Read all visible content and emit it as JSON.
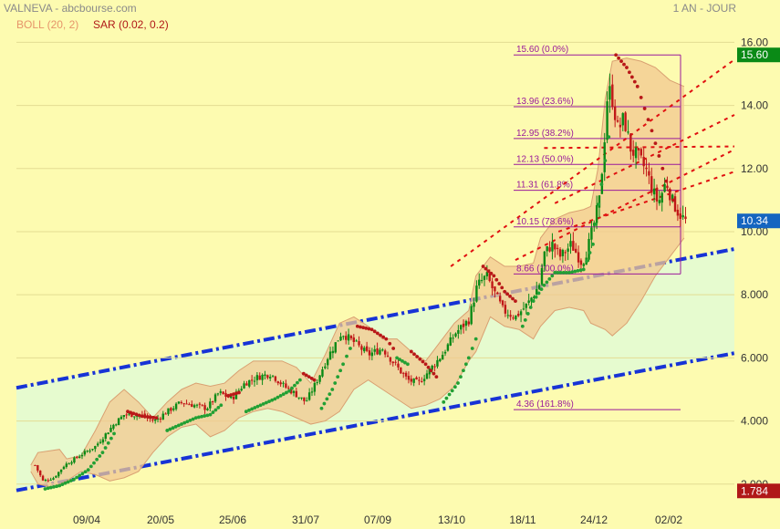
{
  "header": {
    "title": "VALNEVA - abcbourse.com",
    "period": "1 AN - JOUR",
    "boll_label": "BOLL (20, 2)",
    "sar_label": "SAR (0.02, 0.2)"
  },
  "colors": {
    "background": "#fdfbb0",
    "channel_fill": "#e6fbcf",
    "channel_line": "#1733d6",
    "bollinger_fill": "#f2c890",
    "bollinger_edge": "#d9a072",
    "candle_up": "#0a8a16",
    "candle_down": "#c01818",
    "sar_up": "#22a034",
    "sar_down": "#b81818",
    "fibonacci": "#9a1a9a",
    "last_price_badge": "#1565c0",
    "max_badge": "#0a8a16",
    "min_badge": "#b01818"
  },
  "chart_data": {
    "type": "candlestick",
    "ylim": [
      1.3,
      16.3
    ],
    "yticks": [
      "16.00",
      "14.00",
      "12.00",
      "10.00",
      "8.000",
      "6.000",
      "4.000",
      "2.000"
    ],
    "yticks_values": [
      16,
      14,
      12,
      10,
      8,
      6,
      4,
      2
    ],
    "xticks": [
      "09/04",
      "20/05",
      "25/06",
      "31/07",
      "07/09",
      "13/10",
      "18/11",
      "24/12",
      "02/02"
    ],
    "last_price": "10.34",
    "period_high": "15.60",
    "period_low": "1.784",
    "close_path": [
      [
        2.6,
        2.6
      ],
      [
        3.7,
        2.1
      ],
      [
        5.2,
        2.2
      ],
      [
        6.7,
        2.6
      ],
      [
        8.8,
        2.9
      ],
      [
        11.0,
        3.2
      ],
      [
        13.6,
        3.9
      ],
      [
        15.0,
        4.2
      ],
      [
        17.3,
        4.2
      ],
      [
        19.2,
        4.0
      ],
      [
        21.0,
        4.3
      ],
      [
        23.0,
        4.6
      ],
      [
        24.7,
        4.5
      ],
      [
        26.5,
        4.4
      ],
      [
        28.2,
        4.9
      ],
      [
        30.0,
        4.7
      ],
      [
        31.8,
        5.2
      ],
      [
        33.7,
        5.4
      ],
      [
        35.4,
        5.5
      ],
      [
        37.3,
        5.1
      ],
      [
        38.6,
        4.9
      ],
      [
        40.3,
        4.6
      ],
      [
        41.7,
        5.2
      ],
      [
        43.3,
        6.0
      ],
      [
        45.3,
        6.8
      ],
      [
        47.0,
        6.5
      ],
      [
        49.0,
        6.1
      ],
      [
        51.0,
        6.3
      ],
      [
        52.7,
        5.8
      ],
      [
        54.5,
        5.3
      ],
      [
        56.0,
        5.2
      ],
      [
        57.5,
        5.6
      ],
      [
        59.3,
        6.1
      ],
      [
        61.2,
        6.8
      ],
      [
        63.0,
        7.2
      ],
      [
        64.2,
        8.3
      ],
      [
        65.5,
        8.6
      ],
      [
        66.5,
        8.1
      ],
      [
        67.8,
        7.5
      ],
      [
        69.5,
        7.3
      ],
      [
        71.2,
        7.7
      ],
      [
        72.8,
        8.3
      ],
      [
        73.5,
        9.3
      ],
      [
        74.6,
        9.6
      ],
      [
        75.8,
        9.2
      ],
      [
        77.3,
        9.6
      ],
      [
        78.8,
        9.0
      ],
      [
        79.6,
        9.5
      ],
      [
        80.4,
        10.2
      ],
      [
        81.2,
        11.0
      ],
      [
        81.8,
        12.6
      ],
      [
        82.4,
        14.6
      ],
      [
        83.0,
        14.2
      ],
      [
        83.8,
        13.2
      ],
      [
        84.6,
        13.6
      ],
      [
        85.6,
        12.6
      ],
      [
        86.8,
        12.3
      ],
      [
        87.8,
        11.9
      ],
      [
        88.6,
        11.3
      ],
      [
        89.4,
        10.9
      ],
      [
        90.5,
        11.6
      ],
      [
        91.3,
        11.0
      ],
      [
        92.2,
        10.6
      ],
      [
        93.2,
        10.34
      ]
    ],
    "bollinger_upper_path": [
      [
        2,
        2.6
      ],
      [
        3,
        3.0
      ],
      [
        6,
        3.1
      ],
      [
        7,
        2.8
      ],
      [
        9,
        2.9
      ],
      [
        11,
        3.7
      ],
      [
        13,
        4.6
      ],
      [
        15,
        5.0
      ],
      [
        17,
        4.6
      ],
      [
        19,
        4.1
      ],
      [
        21,
        4.6
      ],
      [
        23,
        5.0
      ],
      [
        25,
        5.2
      ],
      [
        27,
        5.1
      ],
      [
        29,
        5.2
      ],
      [
        31,
        5.6
      ],
      [
        33,
        5.9
      ],
      [
        35,
        5.9
      ],
      [
        37,
        5.9
      ],
      [
        39,
        5.7
      ],
      [
        41,
        5.2
      ],
      [
        43,
        6.1
      ],
      [
        45,
        7.1
      ],
      [
        47,
        7.3
      ],
      [
        49,
        7.0
      ],
      [
        51,
        6.6
      ],
      [
        53,
        6.6
      ],
      [
        55,
        6.2
      ],
      [
        57,
        5.9
      ],
      [
        59,
        6.5
      ],
      [
        61,
        7.1
      ],
      [
        63,
        7.5
      ],
      [
        64,
        8.6
      ],
      [
        66,
        9.2
      ],
      [
        68,
        8.9
      ],
      [
        70,
        8.9
      ],
      [
        72,
        9.0
      ],
      [
        73,
        9.8
      ],
      [
        75,
        10.4
      ],
      [
        77,
        10.6
      ],
      [
        79,
        10.7
      ],
      [
        80,
        10.8
      ],
      [
        81,
        12.0
      ],
      [
        82,
        14.2
      ],
      [
        83,
        15.4
      ],
      [
        85,
        15.5
      ],
      [
        87,
        15.4
      ],
      [
        89,
        15.2
      ],
      [
        91,
        14.8
      ],
      [
        93,
        14.6
      ]
    ],
    "bollinger_lower_path": [
      [
        2,
        2.4
      ],
      [
        3,
        2.0
      ],
      [
        5,
        1.9
      ],
      [
        7,
        2.1
      ],
      [
        9,
        2.4
      ],
      [
        11,
        2.3
      ],
      [
        13,
        2.1
      ],
      [
        15,
        2.2
      ],
      [
        17,
        2.4
      ],
      [
        19,
        3.0
      ],
      [
        21,
        3.5
      ],
      [
        23,
        3.8
      ],
      [
        25,
        3.9
      ],
      [
        27,
        3.5
      ],
      [
        29,
        3.7
      ],
      [
        31,
        4.1
      ],
      [
        33,
        4.3
      ],
      [
        35,
        4.4
      ],
      [
        37,
        4.3
      ],
      [
        39,
        4.1
      ],
      [
        41,
        3.9
      ],
      [
        43,
        4.0
      ],
      [
        45,
        4.3
      ],
      [
        47,
        5.0
      ],
      [
        49,
        5.3
      ],
      [
        51,
        5.0
      ],
      [
        53,
        4.7
      ],
      [
        55,
        4.4
      ],
      [
        57,
        4.5
      ],
      [
        59,
        4.7
      ],
      [
        61,
        5.1
      ],
      [
        63,
        5.9
      ],
      [
        64,
        6.2
      ],
      [
        66,
        7.3
      ],
      [
        68,
        7.0
      ],
      [
        70,
        6.9
      ],
      [
        72,
        6.6
      ],
      [
        73,
        7.0
      ],
      [
        75,
        7.5
      ],
      [
        77,
        7.6
      ],
      [
        79,
        7.5
      ],
      [
        80,
        7.1
      ],
      [
        82,
        6.9
      ],
      [
        83,
        6.7
      ],
      [
        85,
        7.1
      ],
      [
        87,
        7.8
      ],
      [
        89,
        8.6
      ],
      [
        91,
        9.2
      ],
      [
        93,
        9.8
      ]
    ],
    "sar_segments": [
      {
        "trend": "up",
        "points": [
          [
            4.0,
            1.85
          ],
          [
            6.0,
            1.95
          ],
          [
            8.0,
            2.15
          ],
          [
            10.0,
            2.45
          ],
          [
            12.0,
            3.0
          ],
          [
            13.6,
            3.6
          ]
        ]
      },
      {
        "trend": "down",
        "points": [
          [
            15.5,
            4.3
          ],
          [
            17.5,
            4.15
          ],
          [
            19.5,
            4.1
          ]
        ]
      },
      {
        "trend": "up",
        "points": [
          [
            21.0,
            3.7
          ],
          [
            23.0,
            3.9
          ],
          [
            25.0,
            4.1
          ],
          [
            27.0,
            4.2
          ],
          [
            28.5,
            4.5
          ]
        ]
      },
      {
        "trend": "down",
        "points": [
          [
            29.5,
            4.8
          ],
          [
            31.0,
            4.9
          ]
        ]
      },
      {
        "trend": "up",
        "points": [
          [
            32.0,
            4.3
          ],
          [
            34.0,
            4.5
          ],
          [
            36.0,
            4.7
          ],
          [
            38.0,
            4.95
          ],
          [
            39.5,
            5.3
          ]
        ]
      },
      {
        "trend": "down",
        "points": [
          [
            40.0,
            5.5
          ],
          [
            41.5,
            5.3
          ]
        ]
      },
      {
        "trend": "up",
        "points": [
          [
            42.5,
            4.4
          ],
          [
            44.0,
            5.0
          ],
          [
            45.5,
            5.8
          ],
          [
            46.5,
            6.3
          ]
        ]
      },
      {
        "trend": "down",
        "points": [
          [
            47.5,
            7.0
          ],
          [
            49.5,
            6.9
          ],
          [
            51.5,
            6.6
          ],
          [
            52.5,
            6.3
          ]
        ]
      },
      {
        "trend": "up",
        "points": [
          [
            53.0,
            6.0
          ],
          [
            54.5,
            5.8
          ]
        ]
      },
      {
        "trend": "down",
        "points": [
          [
            55.0,
            6.2
          ],
          [
            57.0,
            5.8
          ],
          [
            58.5,
            5.4
          ]
        ]
      },
      {
        "trend": "up",
        "points": [
          [
            59.5,
            4.6
          ],
          [
            61.5,
            5.2
          ],
          [
            63.0,
            6.0
          ],
          [
            64.0,
            6.6
          ]
        ]
      },
      {
        "trend": "down",
        "points": [
          [
            65.0,
            8.9
          ],
          [
            66.5,
            8.6
          ],
          [
            68.0,
            8.1
          ],
          [
            69.5,
            7.8
          ]
        ]
      },
      {
        "trend": "up",
        "points": [
          [
            70.5,
            7.0
          ],
          [
            72.0,
            7.8
          ],
          [
            73.5,
            8.3
          ],
          [
            75.0,
            8.7
          ],
          [
            77.0,
            8.7
          ],
          [
            79.0,
            8.8
          ],
          [
            80.3,
            9.6
          ],
          [
            81.5,
            11.5
          ],
          [
            82.5,
            13.0
          ]
        ]
      },
      {
        "trend": "down",
        "points": [
          [
            83.5,
            15.6
          ],
          [
            85.0,
            15.2
          ],
          [
            86.5,
            14.6
          ],
          [
            87.5,
            13.9
          ],
          [
            88.5,
            13.2
          ],
          [
            89.5,
            12.4
          ],
          [
            90.5,
            11.6
          ],
          [
            91.5,
            11.0
          ]
        ]
      }
    ],
    "fibonacci_levels": [
      {
        "label": "15.60  (0.0%)",
        "value": 15.6
      },
      {
        "label": "13.96  (23.6%)",
        "value": 13.96
      },
      {
        "label": "12.95  (38.2%)",
        "value": 12.95
      },
      {
        "label": "12.13  (50.0%)",
        "value": 12.13
      },
      {
        "label": "11.31  (61.8%)",
        "value": 11.31
      },
      {
        "label": "10.15  (78.6%)",
        "value": 10.15
      },
      {
        "label": "8.66  (100.0%)",
        "value": 8.66
      },
      {
        "label": "4.36  (161.8%)",
        "value": 4.36
      }
    ],
    "channel": {
      "upper_start": [
        0,
        5.05
      ],
      "upper_end": [
        100,
        9.45
      ],
      "lower_start": [
        0,
        1.8
      ],
      "lower_end": [
        100,
        6.15
      ]
    },
    "red_dotted_channel": [
      {
        "start": [
          60.5,
          8.9
        ],
        "end": [
          100,
          15.45
        ]
      },
      {
        "start": [
          69.5,
          9.1
        ],
        "end": [
          100,
          12.6
        ]
      },
      {
        "start": [
          75.5,
          10.0
        ],
        "end": [
          100,
          11.9
        ]
      },
      {
        "start": [
          75.0,
          10.9
        ],
        "end": [
          100,
          13.7
        ]
      },
      {
        "start": [
          73.5,
          12.65
        ],
        "end": [
          100,
          12.7
        ]
      }
    ]
  }
}
